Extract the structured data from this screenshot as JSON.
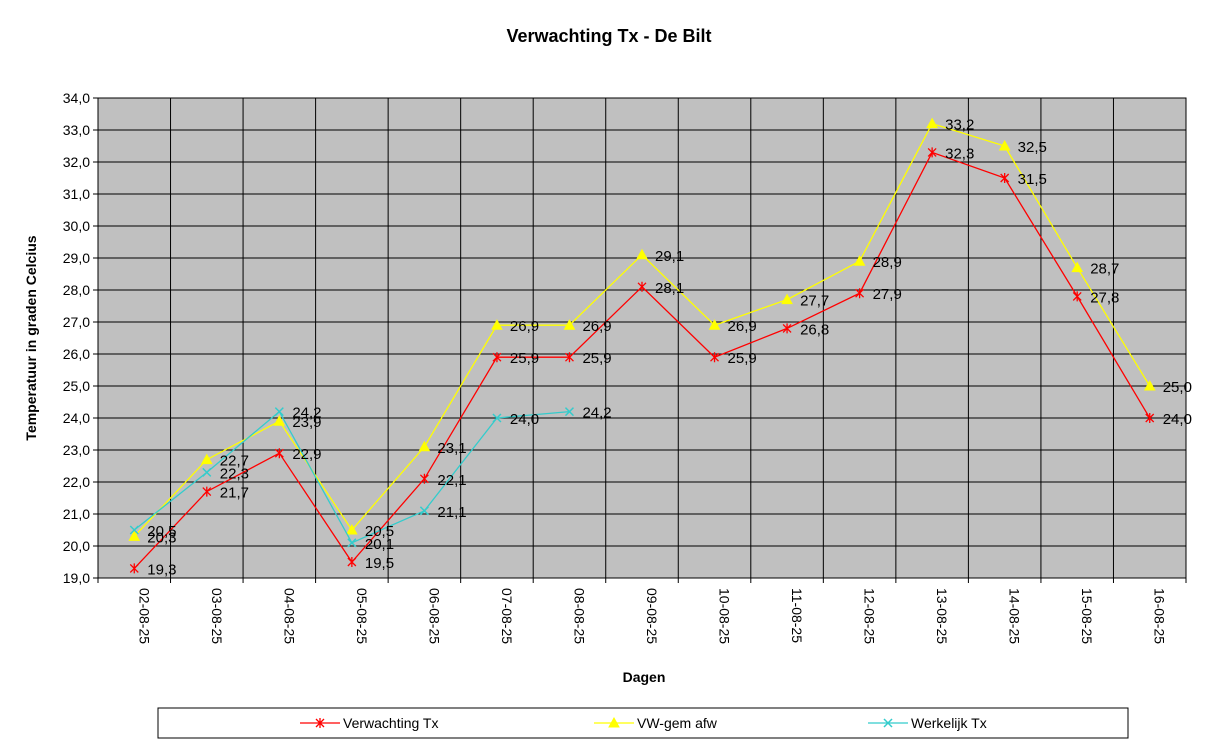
{
  "chart_data": {
    "type": "line",
    "title": "Verwachting Tx - De Bilt",
    "xlabel": "Dagen",
    "ylabel": "Temperatuur in graden Celcius",
    "ylim": [
      19.0,
      34.0
    ],
    "ytick_step": 1.0,
    "ytick_labels": [
      "19,0",
      "20,0",
      "21,0",
      "22,0",
      "23,0",
      "24,0",
      "25,0",
      "26,0",
      "27,0",
      "28,0",
      "29,0",
      "30,0",
      "31,0",
      "32,0",
      "33,0",
      "34,0"
    ],
    "categories": [
      "02-08-25",
      "03-08-25",
      "04-08-25",
      "05-08-25",
      "06-08-25",
      "07-08-25",
      "08-08-25",
      "09-08-25",
      "10-08-25",
      "11-08-25",
      "12-08-25",
      "13-08-25",
      "14-08-25",
      "15-08-25",
      "16-08-25"
    ],
    "grid": true,
    "plot_background": "#c0c0c0",
    "legend_position": "bottom",
    "series": [
      {
        "name": "Verwachting Tx",
        "color": "#ff0000",
        "marker": "star",
        "values": [
          19.3,
          21.7,
          22.9,
          19.5,
          22.1,
          25.9,
          25.9,
          28.1,
          25.9,
          26.8,
          27.9,
          32.3,
          31.5,
          27.8,
          24.0
        ],
        "labels": [
          "19,3",
          "21,7",
          "22,9",
          "19,5",
          "22,1",
          "25,9",
          "25,9",
          "28,1",
          "25,9",
          "26,8",
          "27,9",
          "32,3",
          "31,5",
          "27,8",
          "24,0"
        ]
      },
      {
        "name": "VW-gem afw",
        "color": "#ffff00",
        "marker": "triangle",
        "values": [
          20.3,
          22.7,
          23.9,
          20.5,
          23.1,
          26.9,
          26.9,
          29.1,
          26.9,
          27.7,
          28.9,
          33.2,
          32.5,
          28.7,
          25.0
        ],
        "labels": [
          "20,3",
          "22,7",
          "23,9",
          "20,5",
          "23,1",
          "26,9",
          "26,9",
          "29,1",
          "26,9",
          "27,7",
          "28,9",
          "33,2",
          "32,5",
          "28,7",
          "25,0"
        ]
      },
      {
        "name": "Werkelijk Tx",
        "color": "#33cccc",
        "marker": "x",
        "values": [
          20.5,
          22.3,
          24.2,
          20.1,
          21.1,
          24.0,
          24.2,
          null,
          null,
          null,
          null,
          null,
          null,
          null,
          null
        ],
        "labels": [
          "20,5",
          "22,3",
          "24,2",
          "20,1",
          "21,1",
          "24,0",
          "24,2",
          null,
          null,
          null,
          null,
          null,
          null,
          null,
          null
        ]
      }
    ]
  }
}
